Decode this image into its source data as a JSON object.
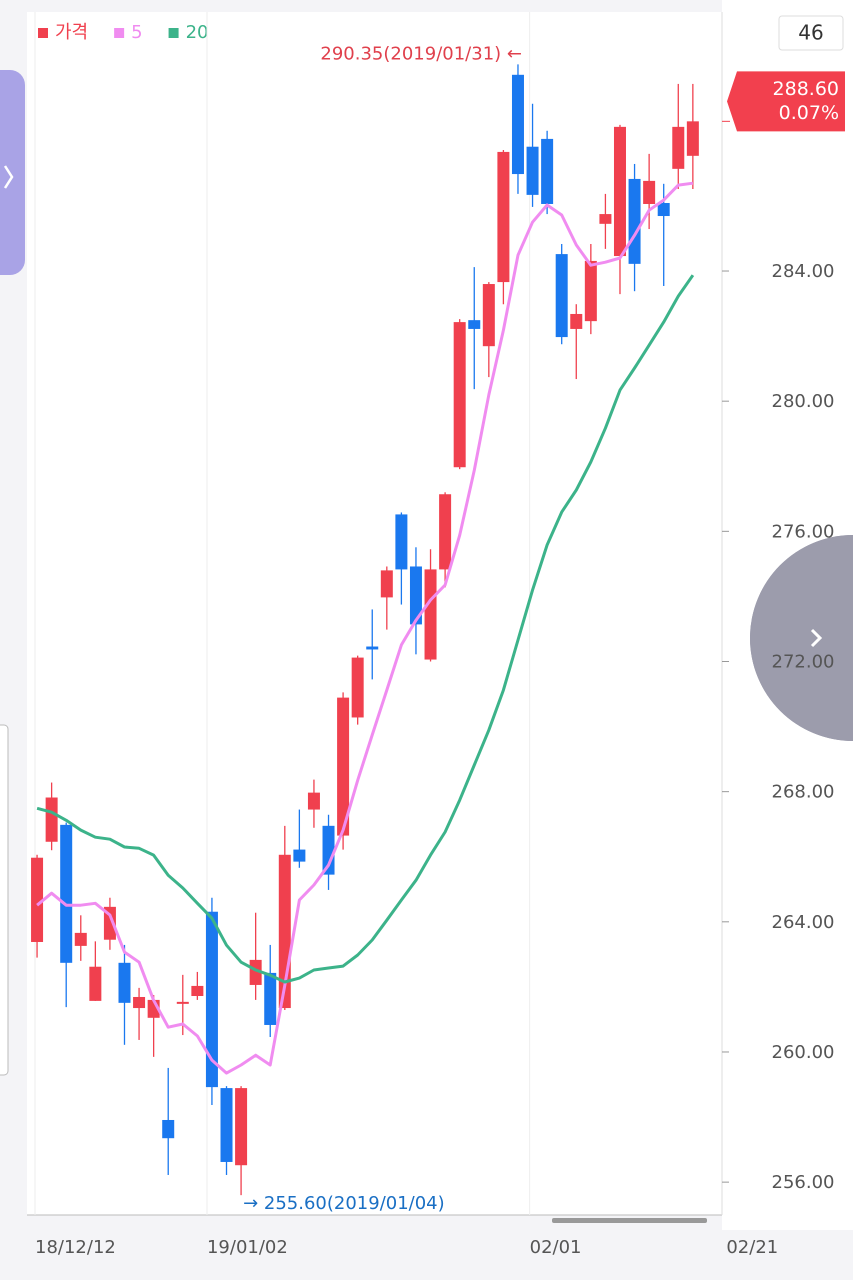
{
  "chart_data": {
    "type": "candlestick",
    "candle_count": "46",
    "price_label": "288.60",
    "change_label": "0.07%",
    "annotations": {
      "high": "290.35(2019/01/31) ←",
      "low": "→ 255.60(2019/01/04)"
    },
    "candles": {
      "name": "가격",
      "up_color": "#f0404e",
      "down_color": "#1a78ef",
      "open": [
        263.38,
        266.46,
        266.98,
        263.26,
        261.57,
        263.45,
        262.74,
        261.35,
        261.05,
        257.91,
        261.48,
        261.72,
        264.31,
        258.89,
        256.52,
        262.06,
        262.43,
        261.35,
        266.22,
        267.45,
        266.95,
        266.65,
        270.28,
        272.46,
        273.97,
        276.52,
        274.92,
        272.06,
        274.83,
        277.97,
        282.49,
        281.69,
        283.66,
        290.03,
        287.82,
        288.06,
        284.52,
        282.22,
        282.46,
        285.45,
        284.46,
        286.83,
        286.06,
        286.09,
        287.14,
        287.54
      ],
      "high": [
        266.06,
        268.28,
        267.05,
        264.2,
        263.4,
        264.74,
        263.29,
        261.97,
        261.75,
        259.51,
        262.37,
        262.46,
        264.74,
        258.95,
        258.95,
        264.28,
        263.29,
        266.95,
        267.45,
        268.37,
        267.29,
        271.05,
        272.18,
        273.6,
        274.92,
        276.58,
        275.51,
        275.45,
        277.2,
        282.52,
        284.12,
        283.66,
        287.72,
        290.35,
        289.14,
        288.31,
        284.83,
        282.98,
        284.83,
        286.37,
        288.49,
        287.29,
        287.6,
        286.68,
        289.75,
        289.75
      ],
      "low": [
        262.9,
        266.2,
        261.38,
        262.8,
        261.57,
        263.14,
        260.22,
        260.37,
        259.85,
        256.22,
        260.52,
        261.6,
        258.37,
        256.22,
        255.6,
        261.6,
        260.46,
        261.29,
        265.66,
        266.89,
        264.98,
        266.22,
        270.06,
        271.45,
        272.98,
        273.75,
        272.22,
        272.0,
        274.28,
        277.91,
        280.37,
        280.74,
        282.98,
        286.37,
        285.97,
        285.75,
        281.75,
        280.68,
        282.06,
        284.68,
        283.29,
        283.38,
        285.29,
        283.54,
        286.52,
        286.52
      ],
      "close": [
        265.97,
        267.82,
        262.74,
        263.66,
        262.62,
        264.46,
        261.51,
        261.69,
        261.6,
        257.35,
        261.54,
        262.03,
        258.92,
        256.62,
        258.89,
        262.83,
        260.83,
        266.06,
        265.85,
        267.97,
        265.45,
        270.89,
        272.12,
        272.37,
        274.8,
        274.83,
        273.14,
        274.83,
        277.14,
        282.43,
        282.22,
        283.6,
        287.66,
        286.98,
        286.34,
        286.06,
        281.97,
        282.68,
        284.31,
        285.75,
        288.43,
        284.22,
        286.77,
        285.69,
        288.43,
        288.6
      ]
    },
    "series": [
      {
        "name": "5",
        "color": "#f08cf0",
        "values": [
          264.51,
          264.88,
          264.51,
          264.51,
          264.57,
          264.21,
          263.07,
          262.76,
          261.59,
          260.76,
          260.86,
          260.49,
          259.75,
          259.35,
          259.6,
          259.9,
          259.6,
          262.05,
          264.67,
          265.13,
          265.74,
          266.82,
          268.35,
          269.74,
          271.12,
          272.51,
          273.27,
          273.89,
          274.35,
          275.88,
          277.88,
          280.19,
          282.18,
          284.49,
          285.5,
          286.03,
          285.72,
          284.8,
          284.18,
          284.27,
          284.4,
          285.1,
          285.87,
          286.18,
          286.64,
          286.7
        ]
      },
      {
        "name": "20",
        "color": "#3cb38a",
        "values": [
          267.49,
          267.37,
          267.12,
          266.82,
          266.6,
          266.54,
          266.3,
          266.26,
          266.05,
          265.43,
          265.04,
          264.57,
          264.11,
          263.28,
          262.76,
          262.52,
          262.36,
          262.15,
          262.27,
          262.52,
          262.58,
          262.64,
          262.98,
          263.44,
          264.05,
          264.67,
          265.28,
          266.05,
          266.76,
          267.74,
          268.82,
          269.89,
          271.12,
          272.66,
          274.19,
          275.58,
          276.59,
          277.27,
          278.13,
          279.17,
          280.34,
          281.02,
          281.72,
          282.43,
          283.23,
          283.87
        ]
      }
    ],
    "xlim": [
      -0.69,
      47.0
    ],
    "xticks": [
      {
        "value": -0.14,
        "label": "18/12/12"
      },
      {
        "value": 11.66,
        "label": "19/01/02"
      },
      {
        "value": 33.8,
        "label": "02/01"
      },
      {
        "value": 47.3,
        "label": "02/21"
      }
    ],
    "ylim": [
      254.99,
      291.96
    ],
    "yticks": [
      {
        "value": 256,
        "label": "256.00"
      },
      {
        "value": 260,
        "label": "260.00"
      },
      {
        "value": 264,
        "label": "264.00"
      },
      {
        "value": 268,
        "label": "268.00"
      },
      {
        "value": 272,
        "label": "272.00"
      },
      {
        "value": 276,
        "label": "276.00"
      },
      {
        "value": 280,
        "label": "280.00"
      },
      {
        "value": 284,
        "label": "284.00"
      }
    ],
    "legend": "top-left"
  }
}
